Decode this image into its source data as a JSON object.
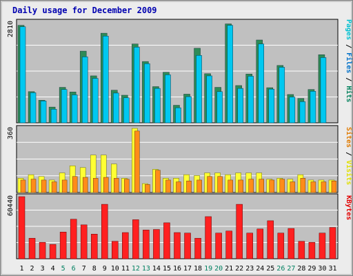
{
  "chart_data": {
    "type": "bar",
    "title": "Daily usage for December 2009",
    "days": [
      "1",
      "2",
      "3",
      "4",
      "5",
      "6",
      "7",
      "8",
      "9",
      "10",
      "11",
      "12",
      "13",
      "14",
      "15",
      "16",
      "17",
      "18",
      "19",
      "20",
      "21",
      "22",
      "23",
      "24",
      "25",
      "26",
      "27",
      "28",
      "29",
      "30",
      "31"
    ],
    "weekend_days": [
      "5",
      "6",
      "12",
      "13",
      "19",
      "20",
      "26",
      "27"
    ],
    "panels": [
      {
        "id": "hits",
        "max_label": "2810",
        "ymax": 2810,
        "legend": [
          {
            "label": "Pages",
            "color": "#00c0d0"
          },
          {
            "label": "Files",
            "color": "#0070c8"
          },
          {
            "label": "Hits",
            "color": "#00805b"
          }
        ],
        "series": [
          {
            "name": "Hits",
            "color": "#2e8b57",
            "values": [
              2720,
              870,
              630,
              440,
              990,
              860,
              2000,
              1310,
              2500,
              910,
              770,
              2200,
              1710,
              1010,
              1410,
              490,
              800,
              2080,
              1370,
              990,
              2760,
              1040,
              1360,
              2310,
              980,
              1600,
              790,
              680,
              930,
              1900,
              0
            ]
          },
          {
            "name": "Files",
            "color": "#00c8f0",
            "values": [
              2680,
              840,
              610,
              380,
              930,
              780,
              1840,
              1240,
              2420,
              830,
              700,
              2110,
              1650,
              960,
              1340,
              420,
              730,
              1880,
              1310,
              870,
              2720,
              960,
              1300,
              2200,
              940,
              1550,
              720,
              590,
              880,
              1820,
              0
            ]
          },
          {
            "name": "Pages",
            "color": "#00c8f0",
            "values": [
              2680,
              840,
              610,
              380,
              930,
              780,
              1840,
              1240,
              2420,
              830,
              700,
              2110,
              1650,
              960,
              1340,
              420,
              730,
              1880,
              1310,
              870,
              2720,
              960,
              1300,
              2200,
              940,
              1550,
              720,
              590,
              880,
              1820,
              0
            ]
          }
        ]
      },
      {
        "id": "visits",
        "max_label": "360",
        "ymax": 360,
        "legend": [
          {
            "label": "Sites",
            "color": "#e07a00"
          },
          {
            "label": "Visits",
            "color": "#e0e000"
          }
        ],
        "series": [
          {
            "name": "Visits",
            "color": "#ffff33",
            "values": [
              80,
              100,
              90,
              70,
              110,
              150,
              140,
              210,
              210,
              160,
              80,
              360,
              50,
              130,
              80,
              80,
              100,
              95,
              110,
              110,
              100,
              110,
              110,
              110,
              75,
              80,
              75,
              100,
              70,
              70,
              70
            ]
          },
          {
            "name": "Sites",
            "color": "#ff8c1a",
            "values": [
              70,
              75,
              70,
              60,
              70,
              90,
              85,
              80,
              85,
              80,
              75,
              345,
              45,
              125,
              70,
              60,
              65,
              70,
              90,
              90,
              70,
              70,
              75,
              75,
              70,
              75,
              60,
              80,
              60,
              60,
              65
            ]
          }
        ]
      },
      {
        "id": "kbytes",
        "max_label": "60440",
        "ymax": 60440,
        "legend": [
          {
            "label": "KBytes",
            "color": "#e00000"
          }
        ],
        "series": [
          {
            "name": "KBytes",
            "color": "#ff2020",
            "values": [
              60440,
              20000,
              16000,
              14000,
              26000,
              38500,
              33000,
              24000,
              53000,
              17000,
              25500,
              38000,
              28000,
              28500,
              35000,
              25500,
              25000,
              20000,
              41000,
              25000,
              27000,
              53000,
              25000,
              29000,
              37000,
              25000,
              29500,
              17000,
              16000,
              25000,
              30500
            ]
          }
        ]
      }
    ]
  }
}
